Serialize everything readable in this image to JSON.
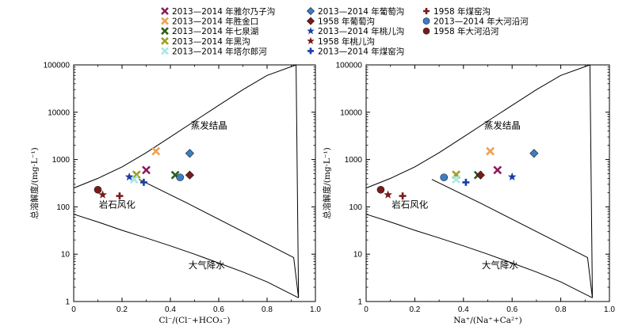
{
  "legend": [
    {
      "label": "2013—2014 年雅尔乃子沟",
      "marker": "x",
      "color": "#8b1a5a"
    },
    {
      "label": "2013—2014 年胜金口",
      "marker": "x",
      "color": "#f0a050"
    },
    {
      "label": "2013—2014 年七泉湖",
      "marker": "x",
      "color": "#2e5e1e"
    },
    {
      "label": "2013—2014 年黑沟",
      "marker": "x",
      "color": "#a0a020"
    },
    {
      "label": "2013—2014 年塔尔郎河",
      "marker": "x",
      "color": "#a8e8e8"
    },
    {
      "label": "2013—2014 年葡萄沟",
      "marker": "diamond",
      "color": "#3a7ec8"
    },
    {
      "label": "1958 年葡萄沟",
      "marker": "diamond",
      "color": "#7a1a1a"
    },
    {
      "label": "2013—2014 年桃儿沟",
      "marker": "star",
      "color": "#1a3ea8"
    },
    {
      "label": "1958 年桃儿沟",
      "marker": "star",
      "color": "#7a1a1a"
    },
    {
      "label": "2013—2014 年煤窑沟",
      "marker": "plus",
      "color": "#1a3ea8"
    },
    {
      "label": "1958 年煤窑沟",
      "marker": "plus",
      "color": "#7a1a1a"
    },
    {
      "label": "2013—2014 年大河沿河",
      "marker": "circle",
      "color": "#3a7ec8"
    },
    {
      "label": "1958 年大河沿河",
      "marker": "circle",
      "color": "#7a1a1a"
    }
  ],
  "chart_data": [
    {
      "type": "scatter",
      "xlabel": "Cl⁻/(Cl⁻+HCO₃⁻)",
      "ylabel": "总溶解度/(mg·L⁻¹)",
      "xlim": [
        0,
        1.0
      ],
      "ylim": [
        1,
        100000
      ],
      "yscale": "log",
      "x_ticks": [
        "0",
        "0.2",
        "0.4",
        "0.6",
        "0.8",
        "1.0"
      ],
      "y_ticks": [
        "1",
        "10",
        "100",
        "1000",
        "10000",
        "100000"
      ],
      "regions": [
        "蒸发结晶",
        "岩石风化",
        "大气降水"
      ],
      "points": [
        {
          "series": 0,
          "x": 0.3,
          "y": 600
        },
        {
          "series": 1,
          "x": 0.34,
          "y": 1500
        },
        {
          "series": 2,
          "x": 0.42,
          "y": 470
        },
        {
          "series": 3,
          "x": 0.26,
          "y": 480
        },
        {
          "series": 4,
          "x": 0.25,
          "y": 380
        },
        {
          "series": 5,
          "x": 0.48,
          "y": 1350
        },
        {
          "series": 6,
          "x": 0.48,
          "y": 470
        },
        {
          "series": 7,
          "x": 0.23,
          "y": 430
        },
        {
          "series": 8,
          "x": 0.12,
          "y": 180
        },
        {
          "series": 9,
          "x": 0.29,
          "y": 330
        },
        {
          "series": 10,
          "x": 0.19,
          "y": 170
        },
        {
          "series": 11,
          "x": 0.44,
          "y": 420
        },
        {
          "series": 12,
          "x": 0.1,
          "y": 230
        }
      ]
    },
    {
      "type": "scatter",
      "xlabel": "Na⁺/(Na⁺+Ca²⁺)",
      "ylabel": "总溶解度/(mg·L⁻¹)",
      "xlim": [
        0,
        1.0
      ],
      "ylim": [
        1,
        100000
      ],
      "yscale": "log",
      "x_ticks": [
        "0",
        "0.2",
        "0.4",
        "0.6",
        "0.8",
        "1.0"
      ],
      "y_ticks": [
        "1",
        "10",
        "100",
        "1000",
        "10000",
        "100000"
      ],
      "regions": [
        "蒸发结晶",
        "岩石风化",
        "大气降水"
      ],
      "points": [
        {
          "series": 0,
          "x": 0.54,
          "y": 600
        },
        {
          "series": 1,
          "x": 0.51,
          "y": 1500
        },
        {
          "series": 2,
          "x": 0.46,
          "y": 470
        },
        {
          "series": 3,
          "x": 0.37,
          "y": 480
        },
        {
          "series": 4,
          "x": 0.37,
          "y": 380
        },
        {
          "series": 5,
          "x": 0.69,
          "y": 1350
        },
        {
          "series": 6,
          "x": 0.47,
          "y": 470
        },
        {
          "series": 7,
          "x": 0.6,
          "y": 430
        },
        {
          "series": 8,
          "x": 0.09,
          "y": 180
        },
        {
          "series": 9,
          "x": 0.41,
          "y": 330
        },
        {
          "series": 10,
          "x": 0.15,
          "y": 170
        },
        {
          "series": 11,
          "x": 0.32,
          "y": 420
        },
        {
          "series": 12,
          "x": 0.06,
          "y": 230
        }
      ]
    }
  ]
}
